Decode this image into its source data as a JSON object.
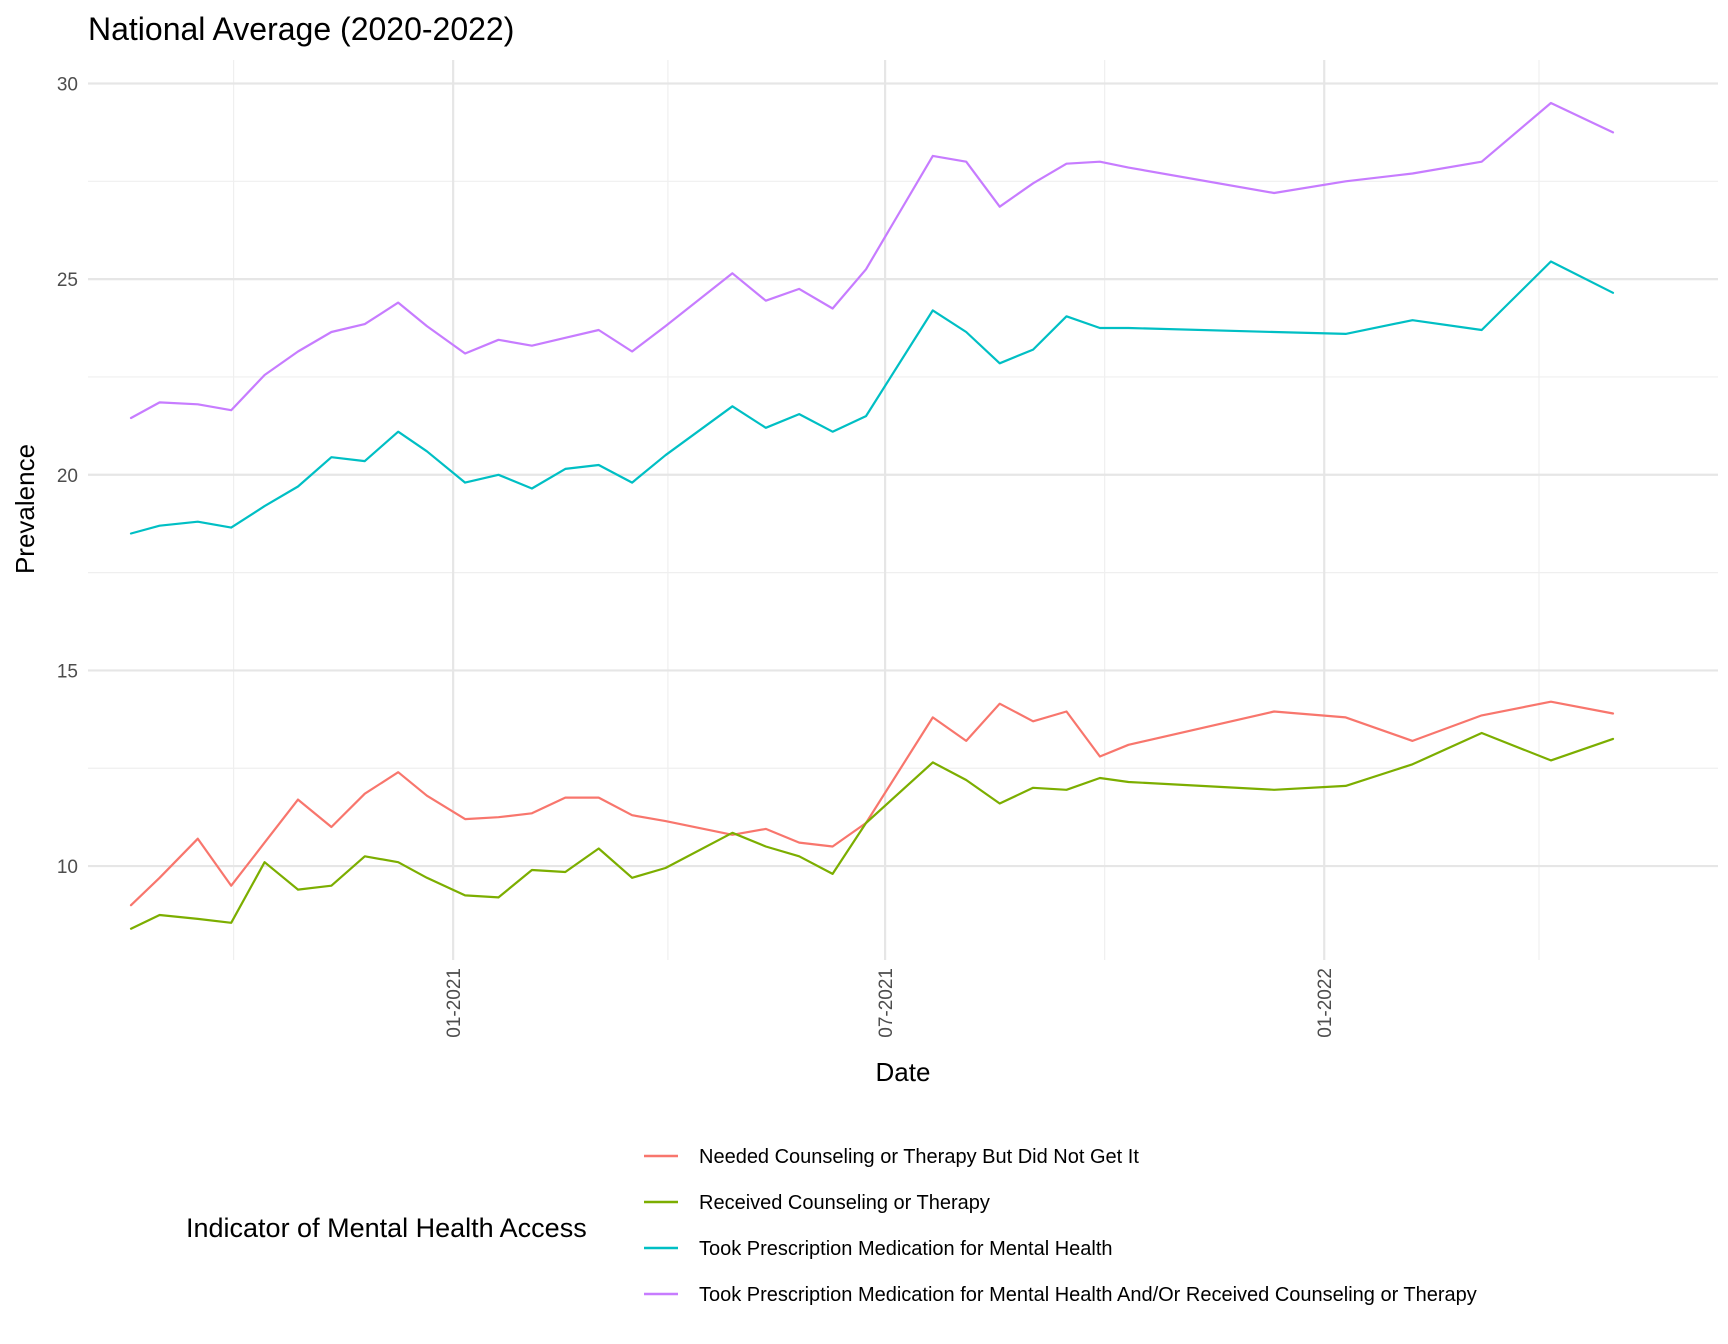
{
  "chart_data": {
    "type": "line",
    "title": "National Average (2020-2022)",
    "xlabel": "Date",
    "ylabel": "Prevalence",
    "ylim": [
      7.6,
      30.6
    ],
    "y_ticks": [
      10,
      15,
      20,
      25,
      30
    ],
    "x_ticks": [
      {
        "date": "2021-01-01",
        "label": "01-2021"
      },
      {
        "date": "2021-07-01",
        "label": "07-2021"
      },
      {
        "date": "2022-01-01",
        "label": "01-2022"
      }
    ],
    "x_minor_ticks": [
      "2020-10-01",
      "2021-04-01",
      "2021-10-01",
      "2022-04-01"
    ],
    "xlim": [
      "2020-08-01",
      "2022-06-15"
    ],
    "grid": true,
    "legend": {
      "title": "Indicator of Mental Health Access",
      "position": "bottom"
    },
    "dates": [
      "2020-08-19",
      "2020-08-31",
      "2020-09-16",
      "2020-09-30",
      "2020-10-14",
      "2020-10-28",
      "2020-11-11",
      "2020-11-25",
      "2020-12-09",
      "2020-12-21",
      "2021-01-06",
      "2021-01-20",
      "2021-02-03",
      "2021-02-17",
      "2021-03-03",
      "2021-03-17",
      "2021-03-31",
      "2021-04-28",
      "2021-05-12",
      "2021-05-26",
      "2021-06-09",
      "2021-06-23",
      "2021-07-21",
      "2021-08-04",
      "2021-08-18",
      "2021-09-01",
      "2021-09-15",
      "2021-09-29",
      "2021-10-11",
      "2021-12-11",
      "2022-01-10",
      "2022-02-07",
      "2022-03-08",
      "2022-04-06",
      "2022-05-02"
    ],
    "series": [
      {
        "name": "Needed Counseling or Therapy But Did Not Get It",
        "color": "#f8766d",
        "values": [
          9.0,
          9.7,
          10.7,
          9.5,
          10.6,
          11.7,
          11.0,
          11.85,
          12.4,
          11.8,
          11.2,
          11.25,
          11.35,
          11.75,
          11.75,
          11.3,
          11.15,
          10.8,
          10.95,
          10.6,
          10.5,
          11.1,
          13.8,
          13.2,
          14.15,
          13.7,
          13.95,
          12.8,
          13.1,
          13.95,
          13.8,
          13.2,
          13.85,
          14.2,
          13.9
        ]
      },
      {
        "name": "Received Counseling or Therapy",
        "color": "#7cae00",
        "values": [
          8.4,
          8.75,
          8.65,
          8.55,
          10.1,
          9.4,
          9.5,
          10.25,
          10.1,
          9.7,
          9.25,
          9.2,
          9.9,
          9.85,
          10.45,
          9.7,
          9.95,
          10.85,
          10.5,
          10.25,
          9.8,
          11.1,
          12.65,
          12.2,
          11.6,
          12.0,
          11.95,
          12.25,
          12.15,
          11.95,
          12.05,
          12.6,
          13.4,
          12.7,
          13.25
        ]
      },
      {
        "name": "Took Prescription Medication for Mental Health",
        "color": "#00bfc4",
        "values": [
          18.5,
          18.7,
          18.8,
          18.65,
          19.2,
          19.7,
          20.45,
          20.35,
          21.1,
          20.6,
          19.8,
          20.0,
          19.65,
          20.15,
          20.25,
          19.8,
          20.5,
          21.75,
          21.2,
          21.55,
          21.1,
          21.5,
          24.2,
          23.65,
          22.85,
          23.2,
          24.05,
          23.75,
          23.75,
          23.65,
          23.6,
          23.95,
          23.7,
          25.45,
          24.65
        ]
      },
      {
        "name": "Took Prescription Medication for Mental Health And/Or Received Counseling or Therapy",
        "color": "#c77cff",
        "values": [
          21.45,
          21.85,
          21.8,
          21.65,
          22.55,
          23.15,
          23.65,
          23.85,
          24.4,
          23.8,
          23.1,
          23.45,
          23.3,
          23.5,
          23.7,
          23.15,
          23.8,
          25.15,
          24.45,
          24.75,
          24.25,
          25.25,
          28.15,
          28.0,
          26.85,
          27.45,
          27.95,
          28.0,
          27.85,
          27.2,
          27.5,
          27.7,
          28.0,
          29.5,
          28.75
        ]
      }
    ]
  }
}
